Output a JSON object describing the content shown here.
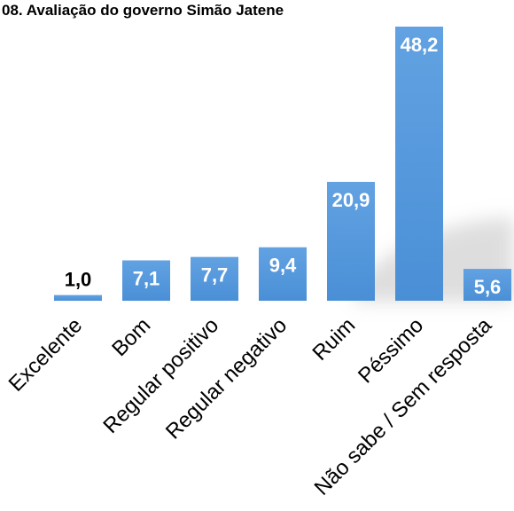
{
  "chart_data": {
    "type": "bar",
    "title": "08. Avaliação do governo Simão Jatene",
    "xlabel": "",
    "ylabel": "",
    "categories": [
      "Excelente",
      "Bom",
      "Regular positivo",
      "Regular negativo",
      "Ruim",
      "Péssimo",
      "Não sabe / Sem resposta"
    ],
    "values": [
      1.0,
      7.1,
      7.7,
      9.4,
      20.9,
      48.2,
      5.6
    ],
    "value_labels": [
      "1,0",
      "7,1",
      "7,7",
      "9,4",
      "20,9",
      "48,2",
      "5,6"
    ],
    "ylim": [
      0,
      48.2
    ],
    "grid": false,
    "legend": "none",
    "bar_color": "#4a8fd6",
    "bar_color_light": "#62a2e2",
    "label_color_inside": "#ffffff",
    "label_color_outside": "#000000"
  }
}
